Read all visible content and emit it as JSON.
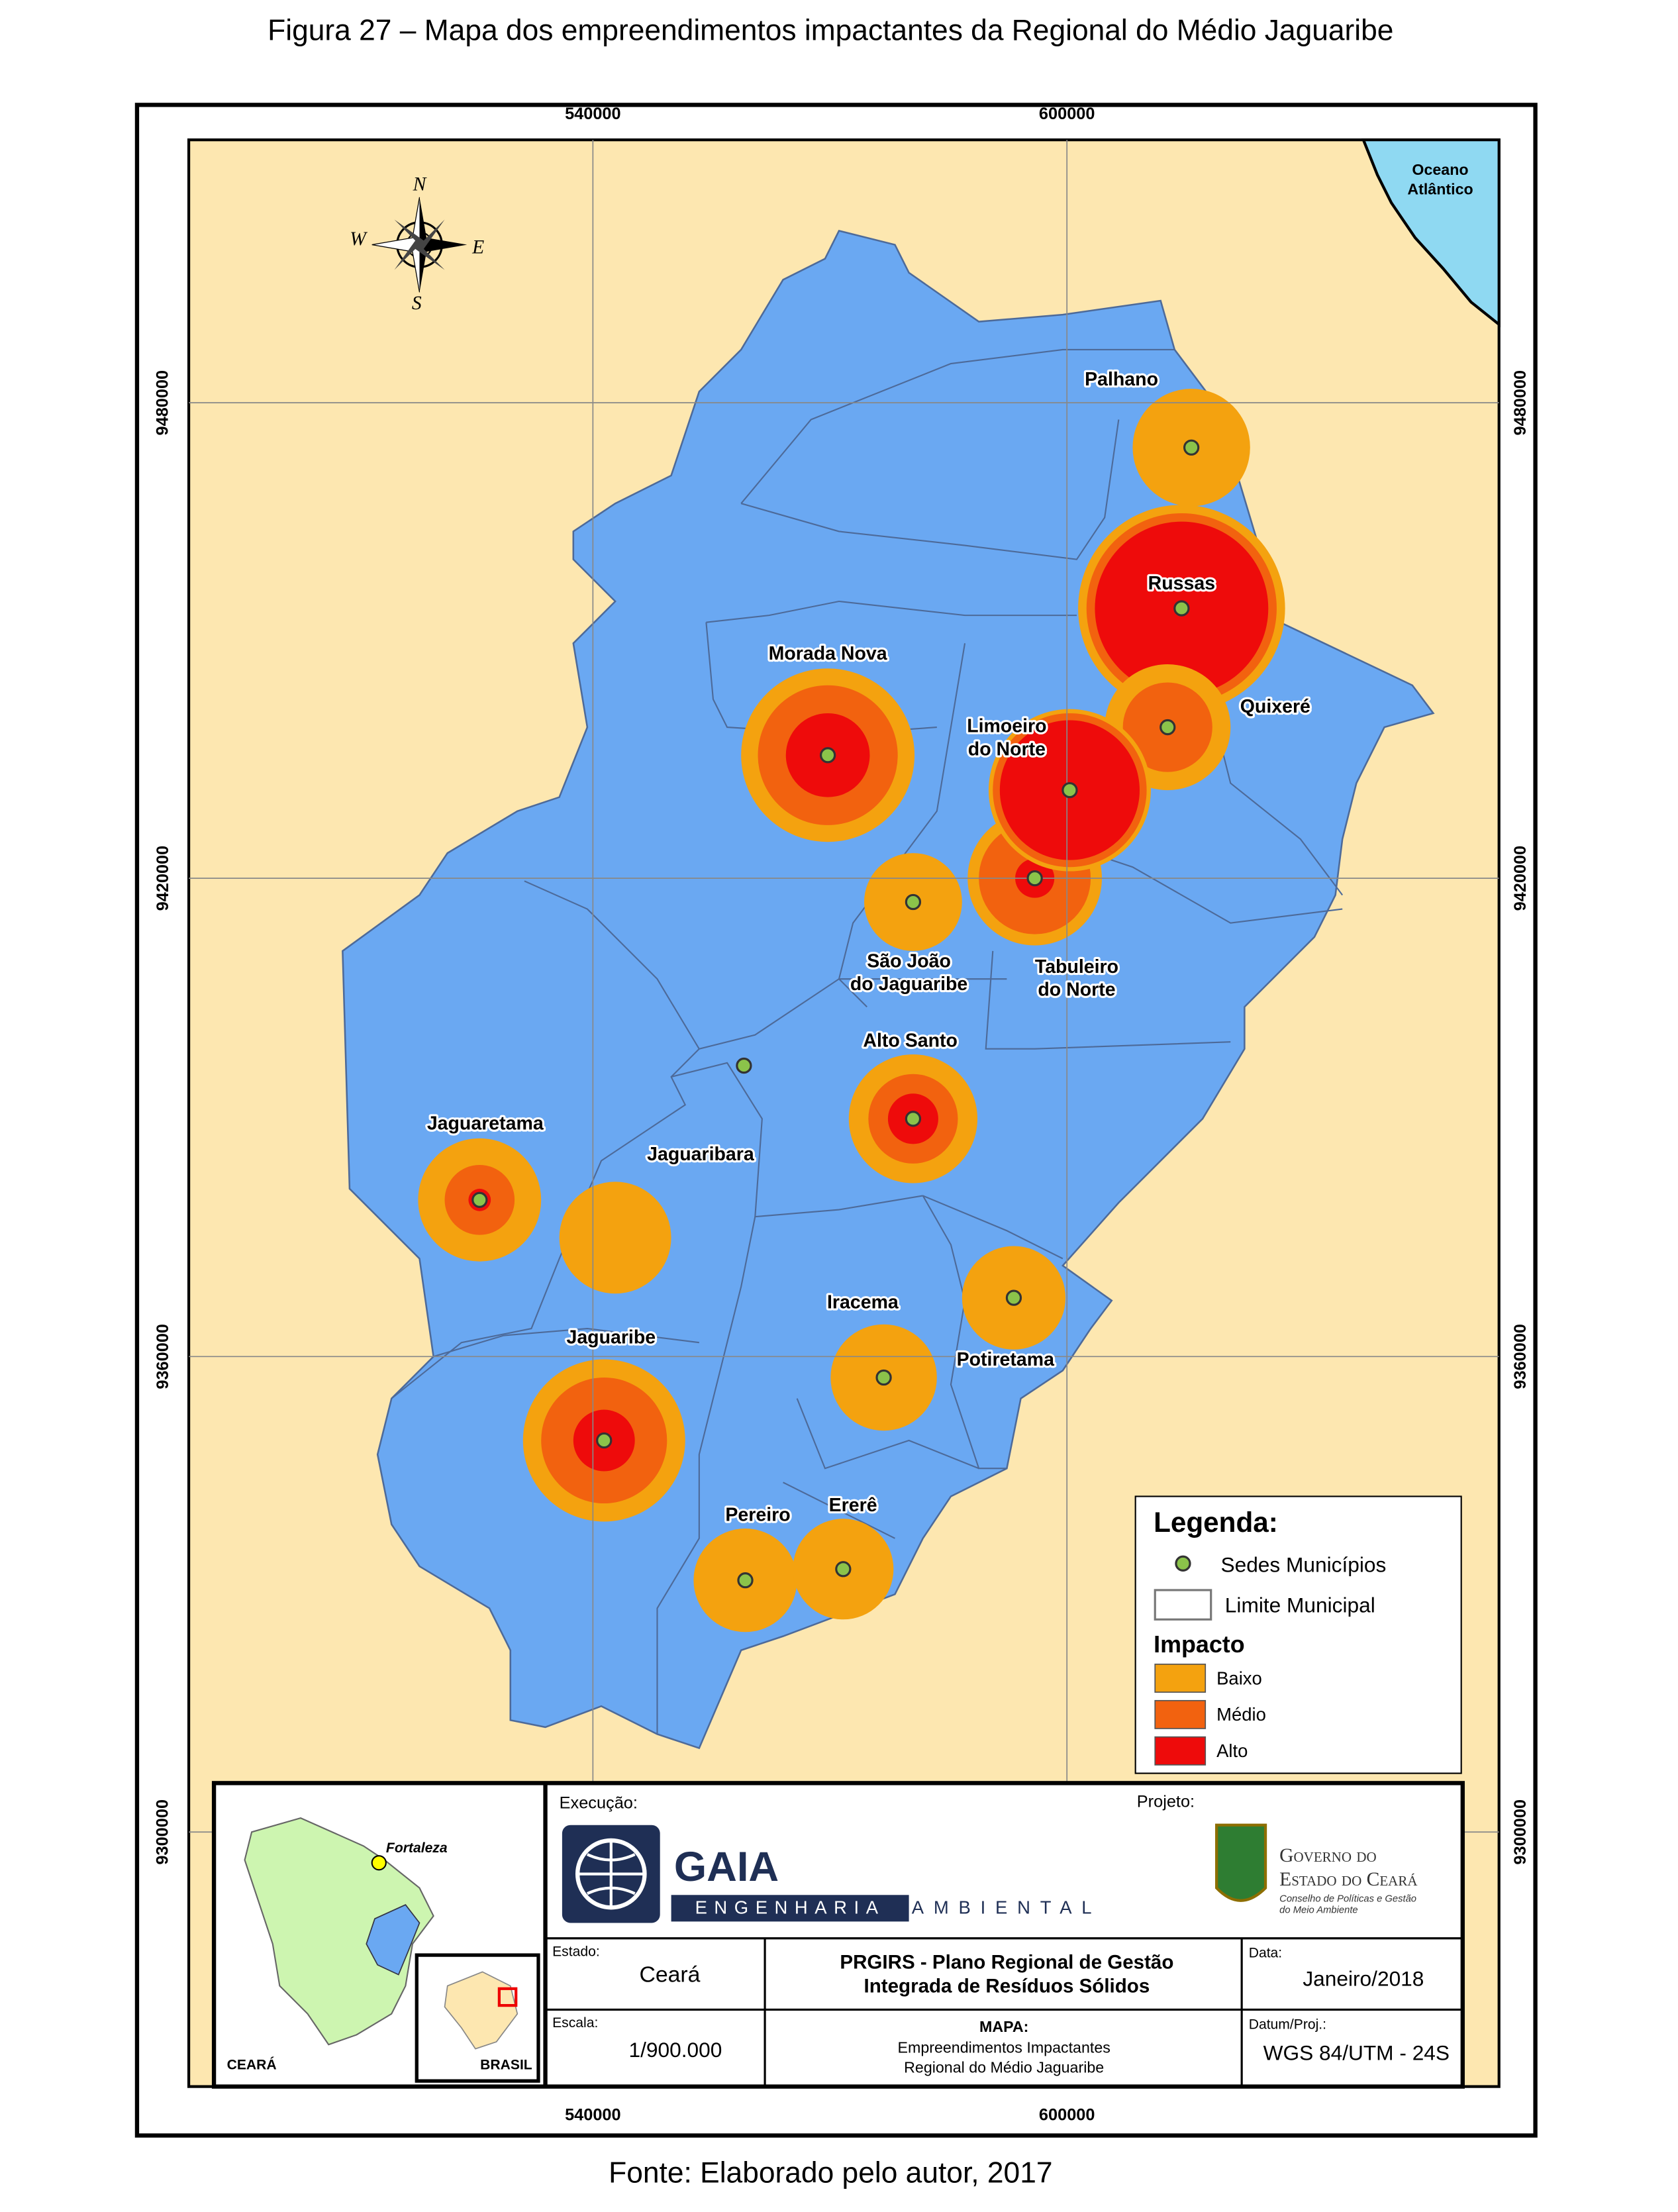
{
  "title": "Figura 27 – Mapa dos empreendimentos impactantes da Regional do Médio Jaguaribe",
  "source": "Fonte: Elaborado pelo autor, 2017",
  "grid": {
    "x_labels": [
      "540000",
      "600000"
    ],
    "y_labels": [
      "9480000",
      "9420000",
      "9360000",
      "9300000"
    ]
  },
  "compass": [
    "N",
    "E",
    "S",
    "W"
  ],
  "ocean": [
    "Oceano",
    "Atlântico"
  ],
  "places": [
    {
      "lines": [
        "Palhano"
      ]
    },
    {
      "lines": [
        "Russas"
      ]
    },
    {
      "lines": [
        "Quixeré"
      ]
    },
    {
      "lines": [
        "Morada Nova"
      ]
    },
    {
      "lines": [
        "Limoeiro",
        "do Norte"
      ]
    },
    {
      "lines": [
        "Tabuleiro",
        "do Norte"
      ]
    },
    {
      "lines": [
        "São João",
        "do Jaguaribe"
      ]
    },
    {
      "lines": [
        "Alto Santo"
      ]
    },
    {
      "lines": [
        "Jaguaretama"
      ]
    },
    {
      "lines": [
        "Jaguaribara"
      ]
    },
    {
      "lines": [
        "Iracema"
      ]
    },
    {
      "lines": [
        "Potiretama"
      ]
    },
    {
      "lines": [
        "Jaguaribe"
      ]
    },
    {
      "lines": [
        "Pereiro"
      ]
    },
    {
      "lines": [
        "Ererê"
      ]
    }
  ],
  "legend": {
    "title": "Legenda:",
    "seat": "Sedes Municípios",
    "boundary": "Limite Municipal",
    "impact_title": "Impacto",
    "impact": [
      {
        "label": "Baixo",
        "color": "#f4a20f"
      },
      {
        "label": "Médio",
        "color": "#f2620f"
      },
      {
        "label": "Alto",
        "color": "#ee0b0b"
      }
    ]
  },
  "title_block": {
    "inset_city": "Fortaleza",
    "inset_state": "CEARÁ",
    "inset_country": "BRASIL",
    "execution_label": "Execução:",
    "company": [
      "GAIA",
      "ENGENHARIA",
      "AMBIENTAL"
    ],
    "project_label": "Projeto:",
    "government": [
      "Governo do",
      "Estado do Ceará",
      "Conselho de Políticas e Gestão",
      "do Meio Ambiente"
    ],
    "state_label": "Estado:",
    "state": "Ceará",
    "plan": [
      "PRGIRS - Plano Regional de Gestão",
      "Integrada de Resíduos Sólidos"
    ],
    "date_label": "Data:",
    "date": "Janeiro/2018",
    "scale_label": "Escala:",
    "scale": "1/900.000",
    "map_label": "MAPA:",
    "map_title": [
      "Empreendimentos Impactantes",
      "Regional do Médio Jaguaribe"
    ],
    "datum_label": "Datum/Proj.:",
    "datum": "WGS 84/UTM - 24S"
  }
}
